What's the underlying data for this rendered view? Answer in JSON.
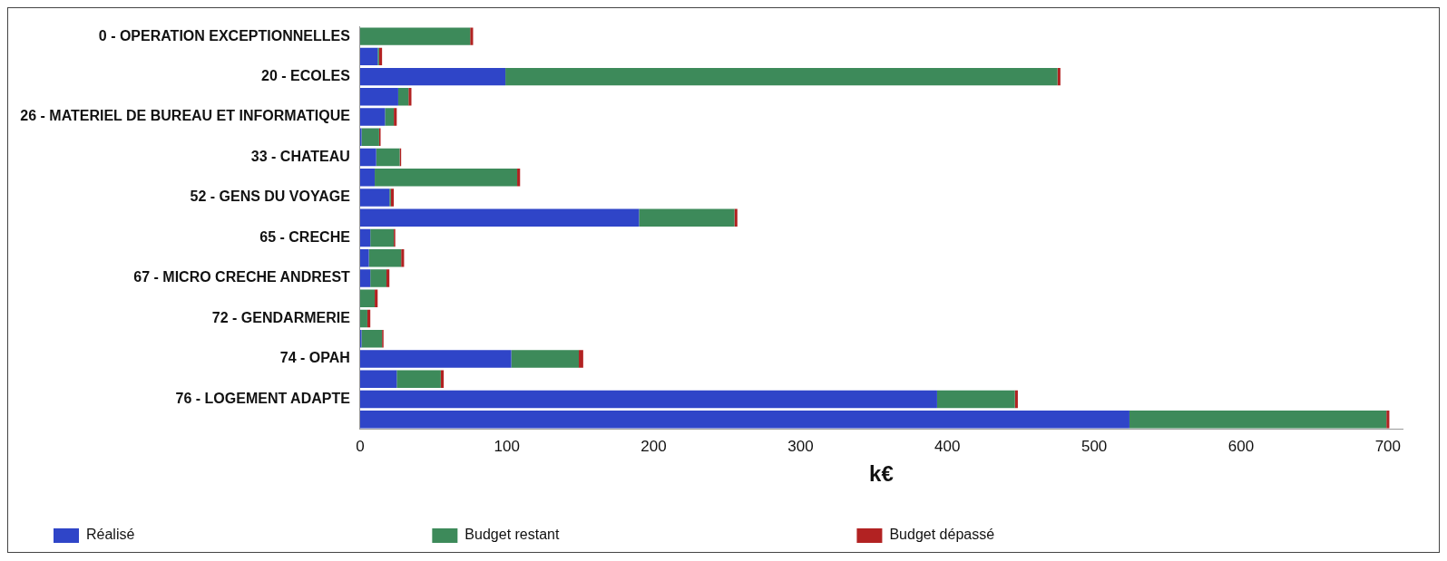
{
  "chart_data": {
    "type": "bar",
    "orientation": "horizontal",
    "stacked": true,
    "xlabel": "k€",
    "categories": [
      "0 - OPERATION EXCEPTIONNELLES",
      null,
      "20 - ECOLES",
      null,
      "26 - MATERIEL DE BUREAU ET INFORMATIQUE",
      null,
      "33 - CHATEAU",
      null,
      "52 - GENS DU VOYAGE",
      null,
      "65 - CRECHE",
      null,
      "67 - MICRO CRECHE ANDREST",
      null,
      "72 - GENDARMERIE",
      null,
      "74 - OPAH",
      null,
      "76 - LOGEMENT ADAPTE",
      null
    ],
    "series": [
      {
        "name": "Réalisé",
        "color": "#2f45c8",
        "values": [
          0,
          12,
          99,
          26,
          17,
          1,
          11,
          10,
          20,
          190,
          7,
          6,
          7,
          0,
          0,
          1,
          103,
          25,
          393,
          524
        ]
      },
      {
        "name": "Budget restant",
        "color": "#3d8a5a",
        "values": [
          75,
          1,
          376,
          7,
          6,
          12,
          16,
          97,
          1,
          65,
          16,
          22,
          11,
          10,
          5,
          14,
          46,
          30,
          53,
          175
        ]
      },
      {
        "name": "Budget dépassé",
        "color": "#b22222",
        "values": [
          2,
          2,
          2,
          2,
          2,
          1,
          1,
          2,
          2,
          2,
          1,
          2,
          2,
          2,
          2,
          1,
          3,
          2,
          2,
          2
        ]
      }
    ],
    "xlim": [
      0,
      710
    ],
    "xticks": [
      0,
      100,
      200,
      300,
      400,
      500,
      600,
      700
    ],
    "grid": false,
    "legend": "bottom"
  }
}
